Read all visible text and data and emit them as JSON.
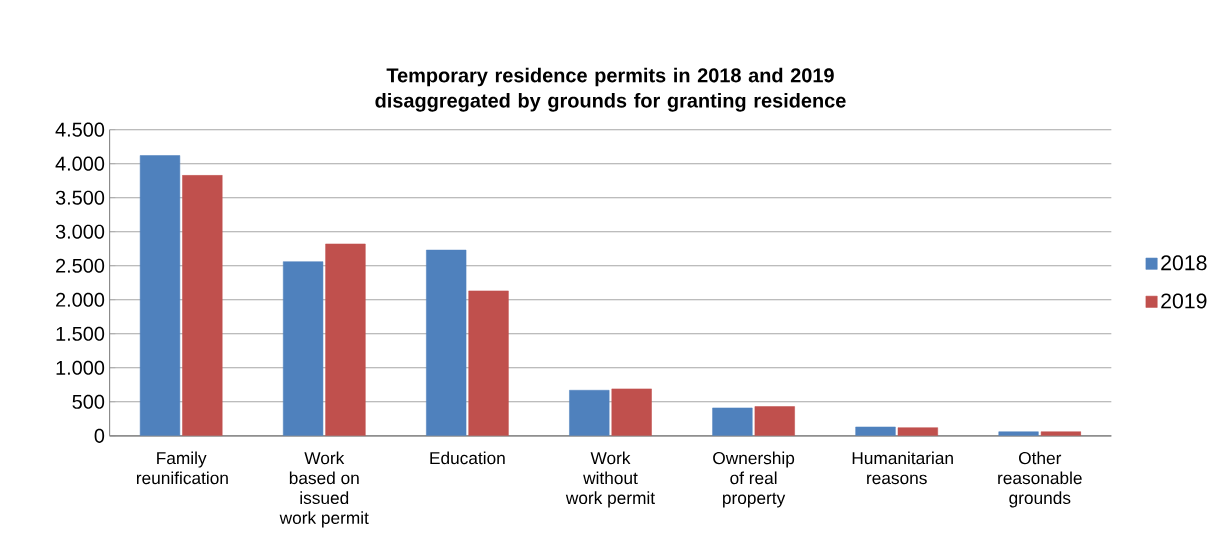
{
  "chart_data": {
    "type": "bar",
    "title": "Temporary residence permits  in 2018 and 2019 disaggregated by grounds for granting residence",
    "categories": [
      "Family reunification",
      "Work based on issued work permit",
      "Education",
      "Work without work permit",
      "Ownership of real property",
      "Humanitarian reasons",
      "Other reasonable grounds"
    ],
    "series": [
      {
        "name": "2018",
        "color": "#4f81bd",
        "values": [
          4120,
          2560,
          2730,
          670,
          410,
          130,
          60
        ]
      },
      {
        "name": "2019",
        "color": "#c0504d",
        "values": [
          3830,
          2820,
          2130,
          690,
          430,
          120,
          60
        ]
      }
    ],
    "ylim": [
      0,
      4500
    ],
    "yticks": [
      {
        "value": 0,
        "label": "0"
      },
      {
        "value": 500,
        "label": "500"
      },
      {
        "value": 1000,
        "label": "1.000"
      },
      {
        "value": 1500,
        "label": "1.500"
      },
      {
        "value": 2000,
        "label": "2.000"
      },
      {
        "value": 2500,
        "label": "2.500"
      },
      {
        "value": 3000,
        "label": "3.000"
      },
      {
        "value": 3500,
        "label": "3.500"
      },
      {
        "value": 4000,
        "label": "4.000"
      },
      {
        "value": 4500,
        "label": "4.500"
      }
    ],
    "grid": "y",
    "legend": "right"
  }
}
